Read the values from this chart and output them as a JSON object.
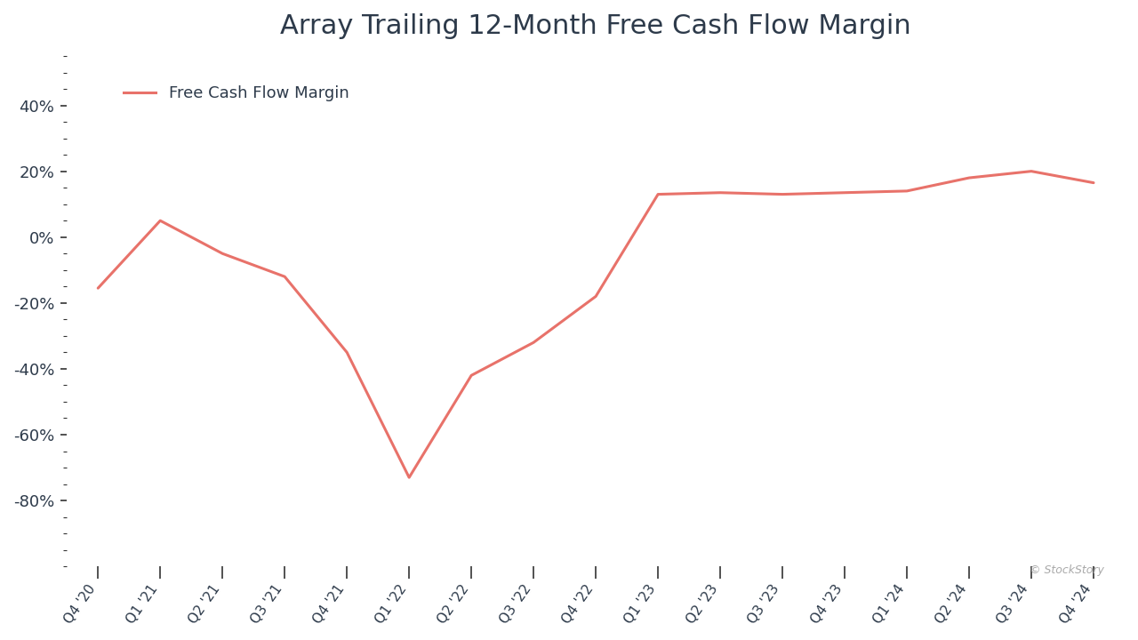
{
  "title": "Array Trailing 12-Month Free Cash Flow Margin",
  "legend_label": "Free Cash Flow Margin",
  "line_color": "#E8726A",
  "background_color": "#ffffff",
  "categories": [
    "Q4 '20",
    "Q1 '21",
    "Q2 '21",
    "Q3 '21",
    "Q4 '21",
    "Q1 '22",
    "Q2 '22",
    "Q3 '22",
    "Q4 '22",
    "Q1 '23",
    "Q2 '23",
    "Q3 '23",
    "Q4 '23",
    "Q1 '24",
    "Q2 '24",
    "Q3 '24",
    "Q4 '24"
  ],
  "values": [
    -0.155,
    0.05,
    -0.05,
    -0.12,
    -0.35,
    -0.73,
    -0.42,
    -0.32,
    -0.18,
    0.13,
    0.135,
    0.13,
    0.135,
    0.14,
    0.18,
    0.2,
    0.165
  ],
  "yticks_major": [
    -0.8,
    -0.6,
    -0.4,
    -0.2,
    0.0,
    0.2,
    0.4
  ],
  "ylim": [
    -1.0,
    0.55
  ],
  "title_fontsize": 22,
  "tick_color": "#2d3a4a",
  "watermark": "© StockStory",
  "line_width": 2.2,
  "legend_fontsize": 13,
  "ytick_fontsize": 13,
  "xtick_fontsize": 11
}
